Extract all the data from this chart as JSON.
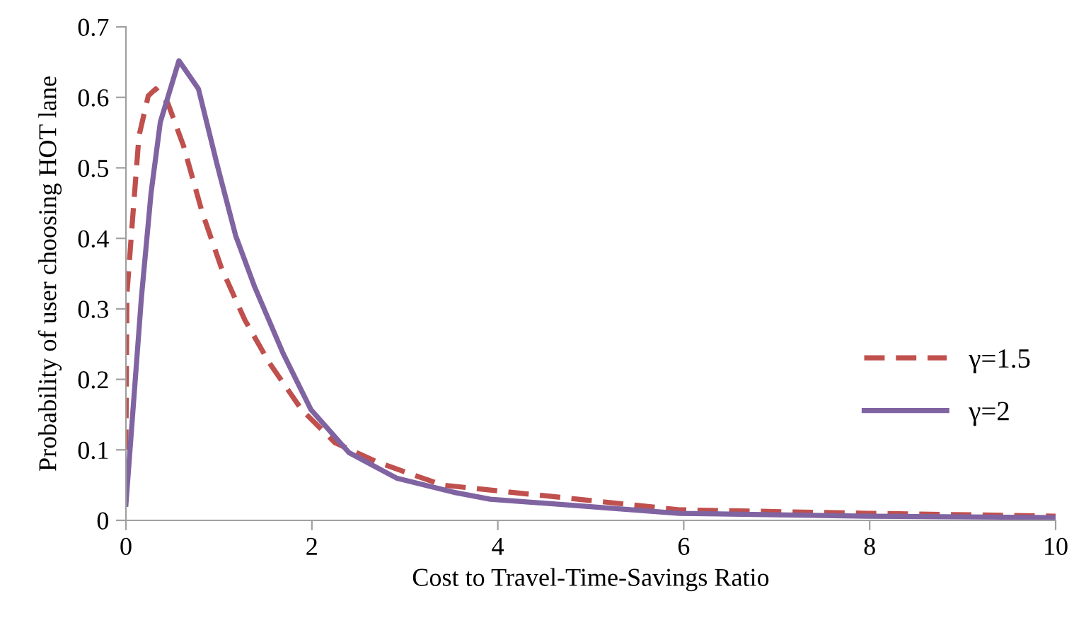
{
  "chart_data": {
    "type": "line",
    "xlabel": "Cost to Travel-Time-Savings Ratio",
    "ylabel": "Probability of user choosing HOT lane",
    "xlim": [
      0,
      10
    ],
    "xticks": [
      0,
      2,
      4,
      6,
      8,
      10
    ],
    "ylim": [
      0,
      0.7
    ],
    "yticks": [
      0,
      0.1,
      0.2,
      0.3,
      0.4,
      0.5,
      0.6,
      0.7
    ],
    "grid": false,
    "legend": "right",
    "series": [
      {
        "name": "γ=1.5",
        "color": "#c0504d",
        "line_style": "dashed",
        "x": [
          0,
          0.01,
          0.066,
          0.14,
          0.24,
          0.32,
          0.45,
          0.62,
          0.82,
          1.03,
          1.28,
          1.54,
          1.89,
          2.25,
          2.7,
          3.06,
          3.41,
          3.92,
          5.95,
          7.98,
          10
        ],
        "values": [
          0.1,
          0.32,
          0.418,
          0.545,
          0.602,
          0.612,
          0.592,
          0.531,
          0.437,
          0.357,
          0.284,
          0.224,
          0.157,
          0.11,
          0.083,
          0.066,
          0.05,
          0.043,
          0.015,
          0.01,
          0.006
        ]
      },
      {
        "name": "γ=2",
        "color": "#8064a2",
        "line_style": "solid",
        "x": [
          0,
          0.167,
          0.27,
          0.37,
          0.57,
          0.78,
          0.98,
          1.18,
          1.385,
          1.69,
          1.99,
          2.4,
          2.91,
          3.52,
          3.92,
          5.95,
          7.98,
          10
        ],
        "values": [
          0.023,
          0.317,
          0.464,
          0.565,
          0.652,
          0.612,
          0.505,
          0.404,
          0.331,
          0.237,
          0.157,
          0.096,
          0.06,
          0.04,
          0.03,
          0.01,
          0.006,
          0.004
        ]
      }
    ]
  }
}
